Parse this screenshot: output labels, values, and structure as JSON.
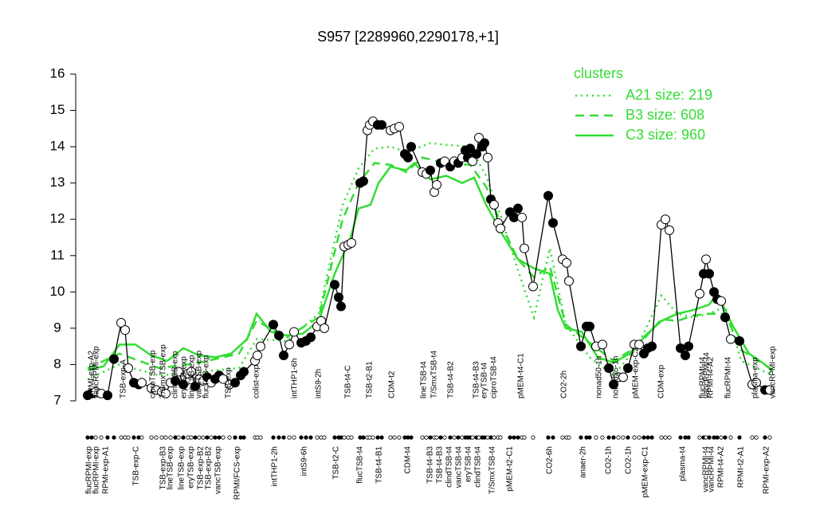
{
  "chart_data": {
    "type": "line",
    "title": "S957 [2289960,2290178,+1]",
    "ylim": [
      7,
      16
    ],
    "yticks": [
      7,
      8,
      9,
      10,
      11,
      12,
      13,
      14,
      15,
      16
    ],
    "xlim": [
      100,
      980
    ],
    "legend_title": "clusters",
    "legend": "top-right",
    "points": {
      "color": "#000000",
      "x": [
        110,
        115,
        120,
        127,
        135,
        143,
        152,
        157,
        161,
        168,
        174,
        178,
        190,
        196,
        203,
        208,
        214,
        220,
        224,
        230,
        236,
        240,
        245,
        250,
        255,
        260,
        265,
        270,
        275,
        280,
        288,
        295,
        302,
        306,
        320,
        323,
        327,
        343,
        350,
        356,
        363,
        369,
        378,
        384,
        390,
        398,
        403,
        407,
        420,
        425,
        428,
        432,
        437,
        441,
        452,
        456,
        461,
        464,
        468,
        474,
        479,
        490,
        495,
        501,
        508,
        512,
        516,
        530,
        535,
        540,
        545,
        548,
        553,
        558,
        565,
        570,
        575,
        580,
        584,
        587,
        590,
        593,
        598,
        601,
        605,
        608,
        612,
        616,
        620,
        625,
        628,
        640,
        645,
        650,
        655,
        658,
        669,
        688,
        694,
        706,
        711,
        714,
        729,
        736,
        740,
        748,
        756,
        764,
        770,
        776,
        782,
        788,
        796,
        802,
        808,
        813,
        818,
        830,
        835,
        840,
        854,
        860,
        864,
        878,
        883,
        886,
        890,
        896,
        900,
        905,
        910,
        917,
        928,
        944,
        949,
        960,
        966
      ],
      "y": [
        7.15,
        7.2,
        7.25,
        7.2,
        7.15,
        8.15,
        9.15,
        8.95,
        7.9,
        7.5,
        7.45,
        7.5,
        7.35,
        7.3,
        7.25,
        7.2,
        7.5,
        7.55,
        7.8,
        7.45,
        7.75,
        7.8,
        7.4,
        7.6,
        7.55,
        7.65,
        7.5,
        7.6,
        7.7,
        7.6,
        7.45,
        7.5,
        7.7,
        7.8,
        8.1,
        8.25,
        8.5,
        9.1,
        8.8,
        8.25,
        8.55,
        8.9,
        8.6,
        8.65,
        8.75,
        9.05,
        9.2,
        9.0,
        10.2,
        9.85,
        9.6,
        11.25,
        11.3,
        11.35,
        13.0,
        13.05,
        14.45,
        14.6,
        14.7,
        14.6,
        14.6,
        14.45,
        14.5,
        14.55,
        13.8,
        13.7,
        14.0,
        13.3,
        13.25,
        13.35,
        12.75,
        12.95,
        13.55,
        13.6,
        13.45,
        13.6,
        13.55,
        13.7,
        13.9,
        13.7,
        13.95,
        13.6,
        13.8,
        14.25,
        14.0,
        14.1,
        13.7,
        12.55,
        12.4,
        11.9,
        11.75,
        12.2,
        12.05,
        12.3,
        12.05,
        11.2,
        10.15,
        12.65,
        11.9,
        10.9,
        10.8,
        10.3,
        8.5,
        9.05,
        9.05,
        8.5,
        8.55,
        7.9,
        7.45,
        7.65,
        7.65,
        7.9,
        8.55,
        8.55,
        8.3,
        8.45,
        8.5,
        11.85,
        12.0,
        11.7,
        8.45,
        8.25,
        8.5,
        9.95,
        10.5,
        10.9,
        10.5,
        10.0,
        9.8,
        9.75,
        9.3,
        8.7,
        8.65,
        7.45,
        7.5,
        7.3,
        7.3
      ],
      "filled": [
        true,
        true,
        false,
        false,
        true,
        true,
        false,
        false,
        false,
        true,
        true,
        false,
        false,
        false,
        false,
        false,
        false,
        true,
        false,
        true,
        false,
        false,
        true,
        false,
        false,
        true,
        false,
        true,
        true,
        false,
        false,
        true,
        true,
        true,
        false,
        false,
        false,
        true,
        true,
        true,
        false,
        false,
        true,
        true,
        true,
        false,
        false,
        false,
        true,
        true,
        true,
        false,
        false,
        false,
        true,
        true,
        false,
        false,
        false,
        true,
        true,
        false,
        false,
        false,
        true,
        true,
        true,
        false,
        false,
        true,
        false,
        false,
        true,
        false,
        true,
        false,
        true,
        false,
        true,
        true,
        true,
        false,
        true,
        false,
        true,
        true,
        false,
        true,
        false,
        false,
        false,
        true,
        true,
        true,
        false,
        false,
        false,
        true,
        true,
        false,
        false,
        false,
        true,
        true,
        true,
        false,
        false,
        true,
        true,
        false,
        false,
        true,
        false,
        false,
        true,
        true,
        true,
        false,
        false,
        false,
        true,
        true,
        true,
        false,
        true,
        false,
        true,
        true,
        true,
        false,
        true,
        false,
        true,
        false,
        false,
        true,
        false
      ]
    },
    "series": [
      {
        "name": "A21 size: 219",
        "color": "#33dd33",
        "style": "dotted",
        "x": [
          110,
          150,
          200,
          250,
          300,
          322,
          360,
          400,
          430,
          450,
          470,
          490,
          510,
          540,
          560,
          590,
          610,
          630,
          650,
          670,
          690,
          710,
          740,
          770,
          800,
          830,
          850,
          870,
          890,
          910,
          930,
          970
        ],
        "values": [
          7.6,
          8.0,
          7.7,
          7.8,
          7.9,
          8.7,
          8.65,
          9.4,
          12.4,
          13.4,
          13.95,
          14.0,
          13.85,
          14.1,
          14.05,
          14.0,
          13.2,
          12.0,
          10.6,
          9.3,
          11.2,
          9.1,
          8.2,
          7.7,
          8.5,
          9.9,
          9.4,
          9.3,
          9.4,
          9.6,
          8.1,
          7.7
        ]
      },
      {
        "name": "B3 size: 608",
        "color": "#33dd33",
        "style": "dashed",
        "x": [
          110,
          150,
          200,
          250,
          300,
          322,
          360,
          400,
          430,
          450,
          470,
          490,
          510,
          530,
          560,
          590,
          610,
          630,
          650,
          670,
          690,
          710,
          740,
          770,
          800,
          830,
          850,
          870,
          890,
          910,
          930,
          970
        ],
        "values": [
          7.9,
          8.3,
          7.9,
          8.05,
          8.3,
          9.2,
          8.75,
          9.3,
          12.0,
          13.0,
          13.55,
          13.5,
          13.3,
          13.7,
          13.55,
          13.5,
          12.9,
          11.8,
          10.9,
          10.4,
          10.7,
          9.1,
          8.6,
          8.1,
          8.5,
          9.25,
          9.2,
          9.35,
          9.4,
          9.4,
          8.4,
          7.85
        ]
      },
      {
        "name": "C3 size: 960",
        "color": "#33dd33",
        "style": "solid",
        "x": [
          110,
          130,
          150,
          170,
          190,
          210,
          230,
          250,
          270,
          290,
          310,
          322,
          340,
          360,
          380,
          400,
          420,
          440,
          450,
          465,
          475,
          490,
          510,
          520,
          540,
          560,
          580,
          595,
          610,
          630,
          650,
          670,
          690,
          700,
          710,
          730,
          750,
          770,
          790,
          810,
          830,
          850,
          870,
          890,
          900,
          920,
          940,
          960,
          970
        ],
        "values": [
          7.85,
          7.95,
          8.55,
          8.55,
          8.25,
          8.1,
          8.45,
          8.25,
          8.2,
          8.3,
          8.7,
          9.4,
          8.9,
          8.8,
          8.85,
          9.2,
          10.5,
          11.5,
          12.3,
          12.4,
          13.0,
          13.45,
          13.35,
          13.55,
          13.1,
          13.2,
          13.0,
          13.15,
          12.4,
          11.6,
          10.9,
          10.65,
          10.5,
          9.5,
          9.0,
          8.9,
          8.2,
          8.05,
          8.3,
          8.8,
          9.2,
          9.4,
          9.5,
          9.65,
          9.95,
          9.05,
          8.3,
          8.0,
          7.8
        ]
      }
    ],
    "top_labels": [
      {
        "x": 115,
        "label": "RPMI-exp-A2"
      },
      {
        "x": 121,
        "label": "vancRPMI-exp"
      },
      {
        "x": 155,
        "label": "TSB-exp-A"
      },
      {
        "x": 192,
        "label": "ciproTSB-exp"
      },
      {
        "x": 205,
        "label": "T/SmxTSB-exp"
      },
      {
        "x": 220,
        "label": "clindTSB-exp"
      },
      {
        "x": 231,
        "label": "eryTSB-exp"
      },
      {
        "x": 241,
        "label": "lineTSB-exp"
      },
      {
        "x": 250,
        "label": "vancTSB-exp"
      },
      {
        "x": 259,
        "label": "flucTSB-exp"
      },
      {
        "x": 287,
        "label": "TSB-exp"
      },
      {
        "x": 322,
        "label": "colist-exp"
      },
      {
        "x": 370,
        "label": "intTHP1-6h"
      },
      {
        "x": 400,
        "label": "intS9-2h"
      },
      {
        "x": 437,
        "label": "TSB-t4-C"
      },
      {
        "x": 464,
        "label": "TSB-t2-B1"
      },
      {
        "x": 492,
        "label": "CDM-t2"
      },
      {
        "x": 532,
        "label": "lineTSB-t4"
      },
      {
        "x": 545,
        "label": "T/SmxTSB-t4"
      },
      {
        "x": 566,
        "label": "TSB-t4-B2"
      },
      {
        "x": 598,
        "label": "TSB-t4-B3"
      },
      {
        "x": 608,
        "label": "eryTSB-t4"
      },
      {
        "x": 620,
        "label": "ciproTSB-t4"
      },
      {
        "x": 654,
        "label": "pMEM-t4-C1"
      },
      {
        "x": 708,
        "label": "CO2-2h"
      },
      {
        "x": 752,
        "label": "nonad50-1h"
      },
      {
        "x": 773,
        "label": "nonad25-1h"
      },
      {
        "x": 798,
        "label": "pMEM-exp-C2"
      },
      {
        "x": 830,
        "label": "CDM-exp"
      },
      {
        "x": 882,
        "label": "flucRPMI-t4"
      },
      {
        "x": 887,
        "label": "vancRPMI-t4"
      },
      {
        "x": 892,
        "label": "RPMI-t4-A2"
      },
      {
        "x": 914,
        "label": "flucRPMI-t4"
      },
      {
        "x": 948,
        "label": "plasma-exp"
      },
      {
        "x": 970,
        "label": "vancRPMI-exp"
      }
    ],
    "bottom_labels": [
      {
        "x": 112,
        "label": "flucRPMI-exp"
      },
      {
        "x": 121,
        "label": "flucRPMI-exp"
      },
      {
        "x": 133,
        "label": "RPMI-exp-A1"
      },
      {
        "x": 171,
        "label": "TSB-exp-C"
      },
      {
        "x": 205,
        "label": "TSB-exp-B3"
      },
      {
        "x": 214,
        "label": "lineTSB-exp"
      },
      {
        "x": 228,
        "label": "lineTSB-exp"
      },
      {
        "x": 240,
        "label": "eryTSB-exp"
      },
      {
        "x": 252,
        "label": "TSB-exp-B2"
      },
      {
        "x": 262,
        "label": "TSB-exp-B2"
      },
      {
        "x": 274,
        "label": "vancTSB-exp"
      },
      {
        "x": 298,
        "label": "RPMI/FCS-exp"
      },
      {
        "x": 345,
        "label": "intTHP1-2h"
      },
      {
        "x": 382,
        "label": "intS9-6h"
      },
      {
        "x": 422,
        "label": "TSB-t2-C"
      },
      {
        "x": 452,
        "label": "flucTSB-t4"
      },
      {
        "x": 476,
        "label": "TSB-t4-B1"
      },
      {
        "x": 512,
        "label": "CDM-t4"
      },
      {
        "x": 540,
        "label": "TSB-t4-B3"
      },
      {
        "x": 552,
        "label": "TSB-t4-B3"
      },
      {
        "x": 564,
        "label": "clindTSB-t4"
      },
      {
        "x": 576,
        "label": "vancTSB-t4"
      },
      {
        "x": 588,
        "label": "eryTSB-t4"
      },
      {
        "x": 600,
        "label": "clindTSB-t4"
      },
      {
        "x": 618,
        "label": "T/SmxTSB-t4"
      },
      {
        "x": 640,
        "label": "pMEM-t2-C1"
      },
      {
        "x": 690,
        "label": "CO2-6h"
      },
      {
        "x": 732,
        "label": "anaer-2h"
      },
      {
        "x": 764,
        "label": "CO2-1h"
      },
      {
        "x": 789,
        "label": "CO2-1h"
      },
      {
        "x": 810,
        "label": "pMEM-exp-C1"
      },
      {
        "x": 857,
        "label": "plasma-t4"
      },
      {
        "x": 886,
        "label": "vancRPMI-t4"
      },
      {
        "x": 893,
        "label": "vancRPMI-t4"
      },
      {
        "x": 905,
        "label": "RPMI-t4-A2"
      },
      {
        "x": 930,
        "label": "RPMI-t2-A1"
      },
      {
        "x": 962,
        "label": "RPMI-exp-A2"
      }
    ]
  }
}
